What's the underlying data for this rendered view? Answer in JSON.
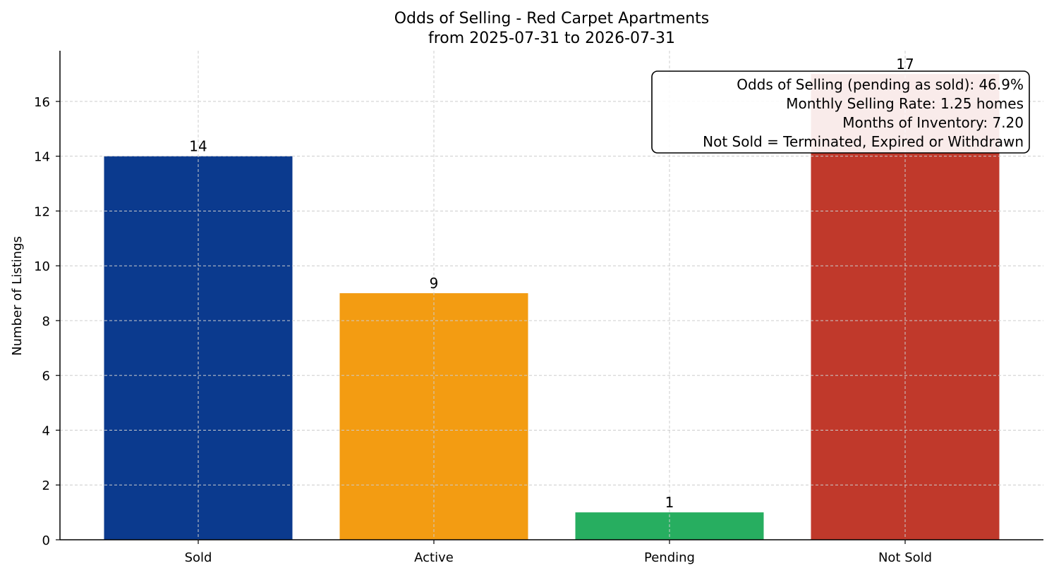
{
  "chart_data": {
    "type": "bar",
    "title": "Odds of Selling - Red Carpet Apartments",
    "subtitle": "from 2025-07-31 to 2026-07-31",
    "xlabel": "",
    "ylabel": "Number of Listings",
    "categories": [
      "Sold",
      "Active",
      "Pending",
      "Not Sold"
    ],
    "values": [
      14,
      9,
      1,
      17
    ],
    "colors": [
      "#0b3a8e",
      "#f39c12",
      "#27ae60",
      "#c0392b"
    ],
    "ylim": [
      0,
      17.85
    ],
    "yticks": [
      0,
      2,
      4,
      6,
      8,
      10,
      12,
      14,
      16
    ],
    "grid": true,
    "info_box": {
      "placement": "top-right",
      "lines": [
        "Odds of Selling (pending as sold): 46.9%",
        "Monthly Selling Rate: 1.25 homes",
        "Months of Inventory: 7.20",
        "Not Sold = Terminated, Expired or Withdrawn"
      ]
    }
  }
}
